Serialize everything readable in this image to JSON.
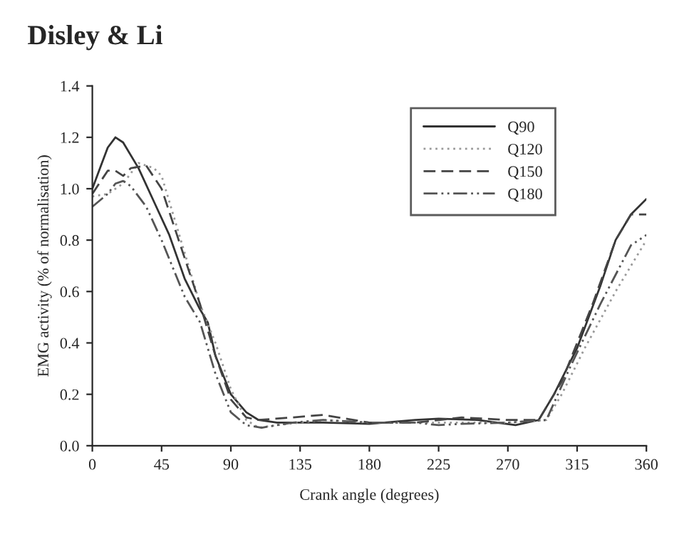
{
  "chart_data": {
    "type": "line",
    "title": "Disley & Li",
    "xlabel": "Crank angle (degrees)",
    "ylabel": "EMG activity (% of normalisation)",
    "xlim": [
      0,
      360
    ],
    "xticks": [
      0,
      45,
      90,
      135,
      180,
      225,
      270,
      315,
      360
    ],
    "ylim": [
      0,
      1.4
    ],
    "yticks": [
      {
        "value": 0,
        "label": "0.0"
      },
      {
        "value": 0.2,
        "label": "0.2"
      },
      {
        "value": 0.4,
        "label": "0.4"
      },
      {
        "value": 0.6,
        "label": "0.6"
      },
      {
        "value": 0.8,
        "label": "0.8"
      },
      {
        "value": 1.0,
        "label": "1.0"
      },
      {
        "value": 1.2,
        "label": "1.2"
      },
      {
        "value": 1.4,
        "label": "1.4"
      }
    ],
    "grid": false,
    "legend": "top right",
    "marker": "none",
    "series": [
      {
        "name": "Q90",
        "color": "#333333",
        "line_style": "solid",
        "x": [
          0,
          5,
          10,
          15,
          20,
          30,
          40,
          50,
          60,
          70,
          75,
          80,
          90,
          100,
          108,
          120,
          150,
          180,
          210,
          225,
          250,
          275,
          290,
          300,
          315,
          330,
          340,
          350,
          360
        ],
        "values": [
          1.0,
          1.08,
          1.16,
          1.2,
          1.18,
          1.08,
          0.95,
          0.82,
          0.65,
          0.53,
          0.48,
          0.35,
          0.2,
          0.13,
          0.1,
          0.09,
          0.09,
          0.085,
          0.1,
          0.105,
          0.1,
          0.08,
          0.1,
          0.2,
          0.38,
          0.62,
          0.8,
          0.9,
          0.96
        ]
      },
      {
        "name": "Q120",
        "color": "#999999",
        "line_style": "dotted",
        "x": [
          0,
          10,
          20,
          30,
          40,
          45,
          55,
          70,
          80,
          90,
          100,
          108,
          120,
          150,
          180,
          210,
          240,
          270,
          295,
          305,
          320,
          340,
          360
        ],
        "values": [
          0.97,
          0.98,
          1.02,
          1.1,
          1.08,
          1.05,
          0.85,
          0.55,
          0.4,
          0.22,
          0.1,
          0.07,
          0.08,
          0.1,
          0.09,
          0.09,
          0.09,
          0.09,
          0.1,
          0.2,
          0.38,
          0.6,
          0.8
        ]
      },
      {
        "name": "Q150",
        "color": "#444444",
        "line_style": "dashed",
        "x": [
          0,
          10,
          15,
          20,
          25,
          35,
          45,
          55,
          70,
          80,
          90,
          100,
          108,
          130,
          150,
          180,
          210,
          240,
          270,
          290,
          305,
          325,
          340,
          350,
          360
        ],
        "values": [
          0.98,
          1.07,
          1.07,
          1.05,
          1.08,
          1.09,
          1.0,
          0.82,
          0.55,
          0.35,
          0.18,
          0.11,
          0.1,
          0.11,
          0.12,
          0.09,
          0.09,
          0.11,
          0.1,
          0.1,
          0.25,
          0.55,
          0.8,
          0.9,
          0.9
        ]
      },
      {
        "name": "Q180",
        "color": "#555555",
        "line_style": "dashdot",
        "x": [
          0,
          10,
          15,
          20,
          25,
          35,
          45,
          60,
          70,
          80,
          90,
          100,
          110,
          130,
          150,
          180,
          210,
          225,
          240,
          270,
          295,
          310,
          330,
          350,
          360
        ],
        "values": [
          0.93,
          0.98,
          1.02,
          1.03,
          1.01,
          0.93,
          0.8,
          0.58,
          0.48,
          0.28,
          0.13,
          0.08,
          0.07,
          0.09,
          0.1,
          0.09,
          0.09,
          0.08,
          0.085,
          0.09,
          0.1,
          0.3,
          0.55,
          0.78,
          0.82
        ]
      }
    ]
  }
}
